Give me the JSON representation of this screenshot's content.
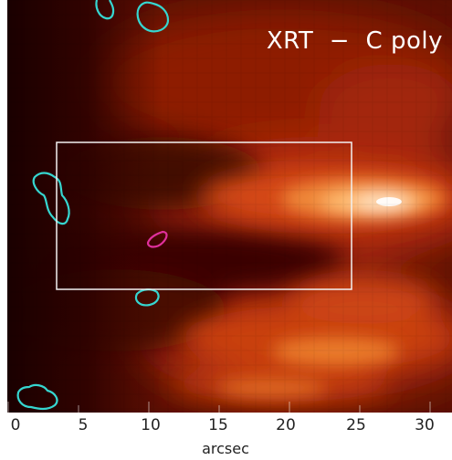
{
  "figure": {
    "title": "XRT  −  C poly",
    "xlabel": "arcsec",
    "xticks": [
      "0",
      "5",
      "10",
      "15",
      "20",
      "25",
      "30"
    ],
    "colors": {
      "background_dark": "#2a0000",
      "mid": "#a8240a",
      "bright": "#ffb060",
      "peak": "#ffffff",
      "contour_cyan": "#36d6d0",
      "contour_magenta": "#e0309c",
      "box": "#f2f2f2"
    }
  }
}
